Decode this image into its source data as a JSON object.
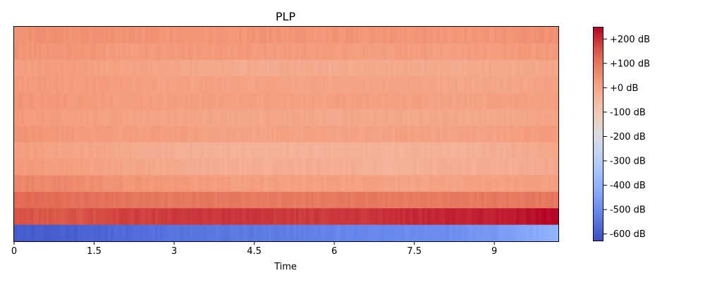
{
  "chart_data": {
    "type": "heatmap",
    "title": "PLP",
    "xlabel": "Time",
    "ylabel": "",
    "xlim": [
      0,
      10.2
    ],
    "x_ticks": [
      0,
      1.5,
      3,
      4.5,
      6,
      7.5,
      9
    ],
    "x_tick_labels": [
      "0",
      "1.5",
      "3",
      "4.5",
      "6",
      "7.5",
      "9"
    ],
    "n_rows": 13,
    "row_order": "top-to-bottom",
    "row_values_db": [
      [
        50,
        45,
        45,
        40,
        40,
        40,
        40,
        40,
        35,
        40,
        50
      ],
      [
        40,
        40,
        30,
        30,
        30,
        25,
        25,
        20,
        20,
        25,
        30
      ],
      [
        20,
        20,
        10,
        0,
        -10,
        -10,
        -10,
        -10,
        -10,
        -10,
        0
      ],
      [
        30,
        25,
        20,
        10,
        10,
        5,
        5,
        5,
        0,
        0,
        10
      ],
      [
        40,
        30,
        20,
        20,
        15,
        15,
        15,
        15,
        10,
        10,
        20
      ],
      [
        30,
        20,
        10,
        5,
        0,
        0,
        -5,
        -5,
        -5,
        -5,
        5
      ],
      [
        40,
        30,
        20,
        20,
        10,
        10,
        10,
        10,
        10,
        10,
        30
      ],
      [
        20,
        10,
        -10,
        -20,
        -30,
        -30,
        -30,
        -30,
        -30,
        -20,
        0
      ],
      [
        30,
        20,
        0,
        -10,
        -20,
        -20,
        -20,
        -30,
        -20,
        -20,
        -10
      ],
      [
        70,
        60,
        40,
        30,
        20,
        15,
        15,
        10,
        10,
        15,
        20
      ],
      [
        120,
        115,
        100,
        95,
        95,
        90,
        95,
        90,
        90,
        95,
        100
      ],
      [
        150,
        150,
        175,
        185,
        190,
        185,
        185,
        200,
        210,
        220,
        250
      ],
      [
        -600,
        -590,
        -570,
        -550,
        -540,
        -530,
        -510,
        -500,
        -490,
        -460,
        -400
      ]
    ],
    "colorbar": {
      "colormap": "coolwarm",
      "vmin": -630,
      "vmax": 250,
      "ticks": [
        200,
        100,
        0,
        -100,
        -200,
        -300,
        -400,
        -500,
        -600
      ],
      "tick_labels": [
        "+200 dB",
        "+100 dB",
        "+0 dB",
        "-100 dB",
        "-200 dB",
        "-300 dB",
        "-400 dB",
        "-500 dB",
        "-600 dB"
      ]
    }
  }
}
